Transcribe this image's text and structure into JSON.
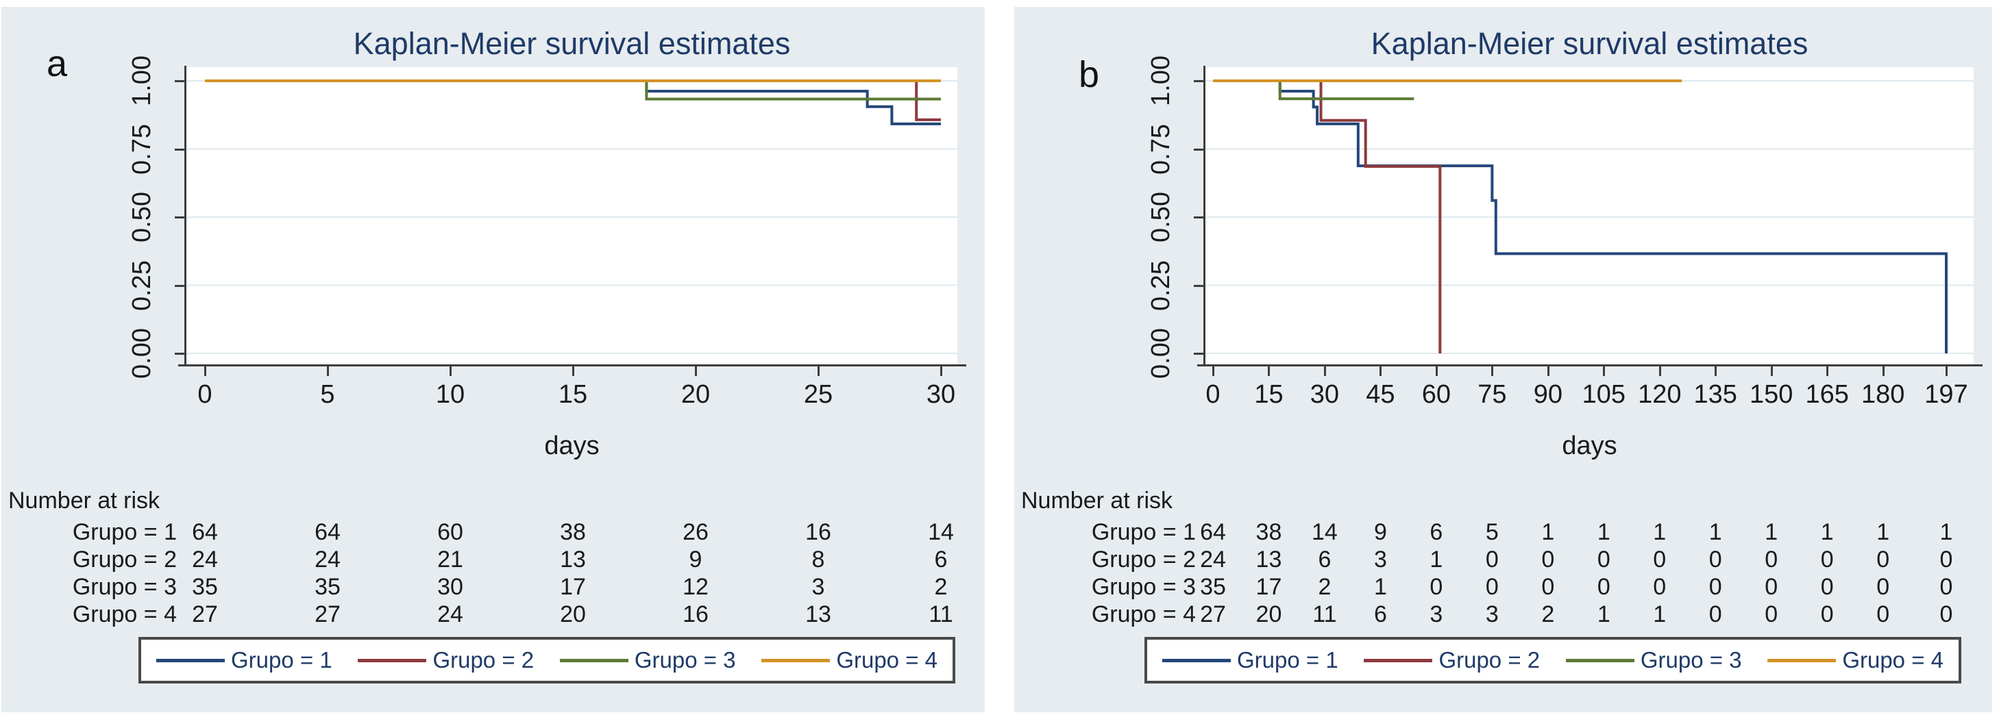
{
  "figure_labels": {
    "panel_a": "a",
    "panel_b": "b"
  },
  "chart_data": [
    {
      "type": "line",
      "subtype": "kaplan-meier-step",
      "corner_label": "a",
      "title": "Kaplan-Meier survival estimates",
      "xlabel": "days",
      "ylim": [
        0,
        1
      ],
      "xmax": 30,
      "grid": true,
      "legend_position": "bottom",
      "y_tick_values": [
        0,
        0.25,
        0.5,
        0.75,
        1
      ],
      "y_tick_labels": [
        "0.00",
        "0.25",
        "0.50",
        "0.75",
        "1.00"
      ],
      "x_tick_values": [
        0,
        5,
        10,
        15,
        20,
        25,
        30
      ],
      "x_tick_labels": [
        "0",
        "5",
        "10",
        "15",
        "20",
        "25",
        "30"
      ],
      "series": [
        {
          "name": "Grupo = 1",
          "color": "#25477b",
          "points": [
            [
              0,
              1
            ],
            [
              18,
              0.962
            ],
            [
              27,
              0.905
            ],
            [
              28,
              0.842
            ],
            [
              30,
              0.842
            ]
          ]
        },
        {
          "name": "Grupo = 2",
          "color": "#8e3a3e",
          "points": [
            [
              0,
              1
            ],
            [
              29,
              0.857
            ],
            [
              30,
              0.857
            ]
          ]
        },
        {
          "name": "Grupo = 3",
          "color": "#5c7a34",
          "points": [
            [
              0,
              1
            ],
            [
              18,
              0.933
            ],
            [
              30,
              0.933
            ]
          ]
        },
        {
          "name": "Grupo = 4",
          "color": "#d39327",
          "points": [
            [
              0,
              1
            ],
            [
              30,
              1
            ]
          ]
        }
      ],
      "number_at_risk": {
        "header": "Number at risk",
        "rows": [
          {
            "label": "Grupo = 1",
            "values": [
              64,
              64,
              60,
              38,
              26,
              16,
              14
            ]
          },
          {
            "label": "Grupo = 2",
            "values": [
              24,
              24,
              21,
              13,
              9,
              8,
              6
            ]
          },
          {
            "label": "Grupo = 3",
            "values": [
              35,
              35,
              30,
              17,
              12,
              3,
              2
            ]
          },
          {
            "label": "Grupo = 4",
            "values": [
              27,
              27,
              24,
              20,
              16,
              13,
              11
            ]
          }
        ]
      }
    },
    {
      "type": "line",
      "subtype": "kaplan-meier-step",
      "corner_label": "b",
      "title": "Kaplan-Meier survival estimates",
      "xlabel": "days",
      "ylim": [
        0,
        1
      ],
      "xmax": 197,
      "grid": true,
      "legend_position": "bottom",
      "y_tick_values": [
        0,
        0.25,
        0.5,
        0.75,
        1
      ],
      "y_tick_labels": [
        "0.00",
        "0.25",
        "0.50",
        "0.75",
        "1.00"
      ],
      "x_tick_values": [
        0,
        15,
        30,
        45,
        60,
        75,
        90,
        105,
        120,
        135,
        150,
        165,
        180,
        197
      ],
      "x_tick_labels": [
        "0",
        "15",
        "30",
        "45",
        "60",
        "75",
        "90",
        "105",
        "120",
        "135",
        "150",
        "165",
        "180",
        "197"
      ],
      "series": [
        {
          "name": "Grupo = 1",
          "color": "#25477b",
          "points": [
            [
              0,
              1
            ],
            [
              18,
              0.962
            ],
            [
              27,
              0.904
            ],
            [
              28,
              0.842
            ],
            [
              39,
              0.688
            ],
            [
              75,
              0.561
            ],
            [
              76,
              0.366
            ],
            [
              197,
              0
            ]
          ]
        },
        {
          "name": "Grupo = 2",
          "color": "#8e3a3e",
          "points": [
            [
              0,
              1
            ],
            [
              29,
              0.855
            ],
            [
              41,
              0.686
            ],
            [
              61,
              0
            ]
          ]
        },
        {
          "name": "Grupo = 3",
          "color": "#5c7a34",
          "points": [
            [
              0,
              1
            ],
            [
              18,
              0.934
            ],
            [
              54,
              0.934
            ]
          ]
        },
        {
          "name": "Grupo = 4",
          "color": "#d39327",
          "points": [
            [
              0,
              1
            ],
            [
              126,
              1
            ]
          ]
        }
      ],
      "number_at_risk": {
        "header": "Number at risk",
        "rows": [
          {
            "label": "Grupo = 1",
            "values": [
              64,
              38,
              14,
              9,
              6,
              5,
              1,
              1,
              1,
              1,
              1,
              1,
              1,
              1
            ]
          },
          {
            "label": "Grupo = 2",
            "values": [
              24,
              13,
              6,
              3,
              1,
              0,
              0,
              0,
              0,
              0,
              0,
              0,
              0,
              0
            ]
          },
          {
            "label": "Grupo = 3",
            "values": [
              35,
              17,
              2,
              1,
              0,
              0,
              0,
              0,
              0,
              0,
              0,
              0,
              0,
              0
            ]
          },
          {
            "label": "Grupo = 4",
            "values": [
              27,
              20,
              11,
              6,
              3,
              3,
              2,
              1,
              1,
              0,
              0,
              0,
              0,
              0
            ]
          }
        ]
      }
    }
  ]
}
